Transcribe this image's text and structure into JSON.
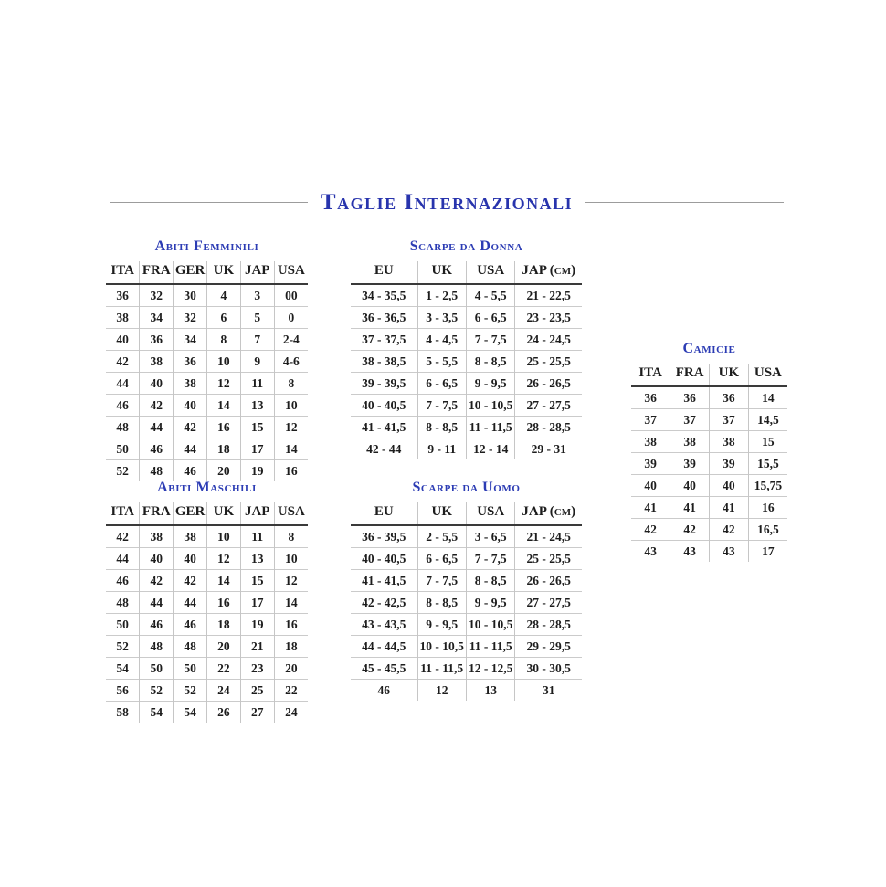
{
  "page": {
    "title": "Taglie Internazionali",
    "background_color": "#ffffff",
    "title_color": "#2834ad",
    "heading_color": "#2c3cb4",
    "text_color": "#1d1d1d",
    "rule_color": "#9c9c9c"
  },
  "tables": {
    "abiti_femminili": {
      "title": "Abiti Femminili",
      "headers": [
        "ITA",
        "FRA",
        "GER",
        "UK",
        "JAP",
        "USA"
      ],
      "rows": [
        [
          "36",
          "32",
          "30",
          "4",
          "3",
          "00"
        ],
        [
          "38",
          "34",
          "32",
          "6",
          "5",
          "0"
        ],
        [
          "40",
          "36",
          "34",
          "8",
          "7",
          "2-4"
        ],
        [
          "42",
          "38",
          "36",
          "10",
          "9",
          "4-6"
        ],
        [
          "44",
          "40",
          "38",
          "12",
          "11",
          "8"
        ],
        [
          "46",
          "42",
          "40",
          "14",
          "13",
          "10"
        ],
        [
          "48",
          "44",
          "42",
          "16",
          "15",
          "12"
        ],
        [
          "50",
          "46",
          "44",
          "18",
          "17",
          "14"
        ],
        [
          "52",
          "48",
          "46",
          "20",
          "19",
          "16"
        ]
      ]
    },
    "scarpe_da_donna": {
      "title": "Scarpe da Donna",
      "headers": [
        "EU",
        "UK",
        "USA",
        "JAP (cm)"
      ],
      "rows": [
        [
          "34 - 35,5",
          "1 - 2,5",
          "4 - 5,5",
          "21 - 22,5"
        ],
        [
          "36 - 36,5",
          "3 - 3,5",
          "6 - 6,5",
          "23 - 23,5"
        ],
        [
          "37 - 37,5",
          "4 - 4,5",
          "7 - 7,5",
          "24 - 24,5"
        ],
        [
          "38 - 38,5",
          "5 - 5,5",
          "8 - 8,5",
          "25 - 25,5"
        ],
        [
          "39 - 39,5",
          "6 - 6,5",
          "9 - 9,5",
          "26 - 26,5"
        ],
        [
          "40 - 40,5",
          "7 - 7,5",
          "10 - 10,5",
          "27 - 27,5"
        ],
        [
          "41 - 41,5",
          "8 - 8,5",
          "11 - 11,5",
          "28 - 28,5"
        ],
        [
          "42 - 44",
          "9 - 11",
          "12 - 14",
          "29 - 31"
        ]
      ]
    },
    "camicie": {
      "title": "Camicie",
      "headers": [
        "ITA",
        "FRA",
        "UK",
        "USA"
      ],
      "rows": [
        [
          "36",
          "36",
          "36",
          "14"
        ],
        [
          "37",
          "37",
          "37",
          "14,5"
        ],
        [
          "38",
          "38",
          "38",
          "15"
        ],
        [
          "39",
          "39",
          "39",
          "15,5"
        ],
        [
          "40",
          "40",
          "40",
          "15,75"
        ],
        [
          "41",
          "41",
          "41",
          "16"
        ],
        [
          "42",
          "42",
          "42",
          "16,5"
        ],
        [
          "43",
          "43",
          "43",
          "17"
        ]
      ]
    },
    "abiti_maschili": {
      "title": "Abiti Maschili",
      "headers": [
        "ITA",
        "FRA",
        "GER",
        "UK",
        "JAP",
        "USA"
      ],
      "rows": [
        [
          "42",
          "38",
          "38",
          "10",
          "11",
          "8"
        ],
        [
          "44",
          "40",
          "40",
          "12",
          "13",
          "10"
        ],
        [
          "46",
          "42",
          "42",
          "14",
          "15",
          "12"
        ],
        [
          "48",
          "44",
          "44",
          "16",
          "17",
          "14"
        ],
        [
          "50",
          "46",
          "46",
          "18",
          "19",
          "16"
        ],
        [
          "52",
          "48",
          "48",
          "20",
          "21",
          "18"
        ],
        [
          "54",
          "50",
          "50",
          "22",
          "23",
          "20"
        ],
        [
          "56",
          "52",
          "52",
          "24",
          "25",
          "22"
        ],
        [
          "58",
          "54",
          "54",
          "26",
          "27",
          "24"
        ]
      ]
    },
    "scarpe_da_uomo": {
      "title": "Scarpe da Uomo",
      "headers": [
        "EU",
        "UK",
        "USA",
        "JAP (cm)"
      ],
      "rows": [
        [
          "36 - 39,5",
          "2 - 5,5",
          "3 - 6,5",
          "21 - 24,5"
        ],
        [
          "40 - 40,5",
          "6 - 6,5",
          "7 - 7,5",
          "25 - 25,5"
        ],
        [
          "41 - 41,5",
          "7 - 7,5",
          "8 - 8,5",
          "26 - 26,5"
        ],
        [
          "42 - 42,5",
          "8 - 8,5",
          "9 - 9,5",
          "27 - 27,5"
        ],
        [
          "43 - 43,5",
          "9 - 9,5",
          "10 - 10,5",
          "28 - 28,5"
        ],
        [
          "44 - 44,5",
          "10 - 10,5",
          "11 - 11,5",
          "29 - 29,5"
        ],
        [
          "45 - 45,5",
          "11 - 11,5",
          "12 - 12,5",
          "30 - 30,5"
        ],
        [
          "46",
          "12",
          "13",
          "31"
        ]
      ]
    }
  }
}
